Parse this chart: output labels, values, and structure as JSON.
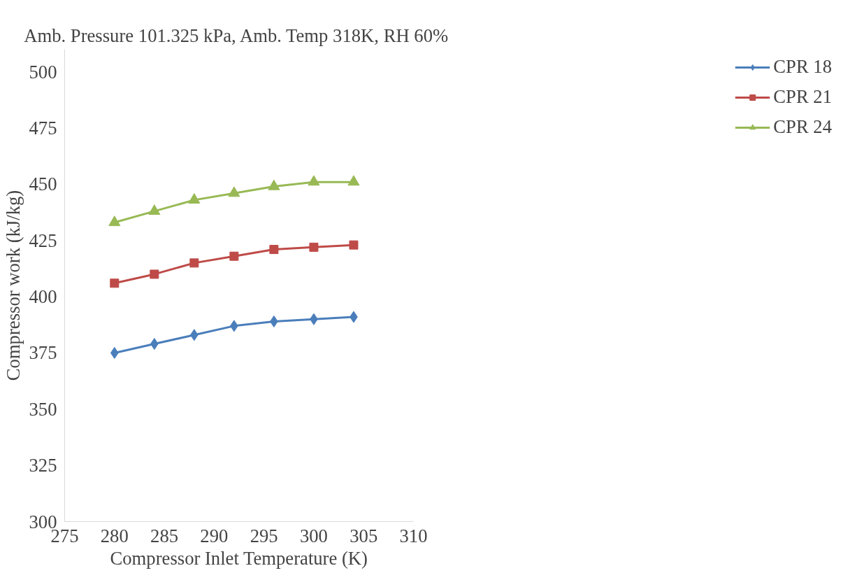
{
  "chart_data": {
    "type": "line",
    "title": "Amb. Pressure 101.325 kPa, Amb. Temp 318K, RH  60%",
    "xlabel": "Compressor Inlet Temperature (K)",
    "ylabel": "Compressor work (kJ/kg)",
    "x": [
      280,
      284,
      288,
      292,
      296,
      300,
      304
    ],
    "series": [
      {
        "name": "CPR 18",
        "color": "#4a7ebb",
        "marker": "diamond",
        "values": [
          375,
          379,
          383,
          387,
          389,
          390,
          391
        ]
      },
      {
        "name": "CPR 21",
        "color": "#be4b48",
        "marker": "square",
        "values": [
          406,
          410,
          415,
          418,
          421,
          422,
          423
        ]
      },
      {
        "name": "CPR 24",
        "color": "#98b954",
        "marker": "triangle",
        "values": [
          433,
          438,
          443,
          446,
          449,
          451,
          451
        ]
      }
    ],
    "xlim": [
      275,
      310
    ],
    "xticks": [
      275,
      280,
      285,
      290,
      295,
      300,
      305,
      310
    ],
    "ylim": [
      300,
      510
    ],
    "yticks": [
      300,
      325,
      350,
      375,
      400,
      425,
      450,
      475,
      500
    ],
    "grid": false,
    "legend": "right"
  }
}
